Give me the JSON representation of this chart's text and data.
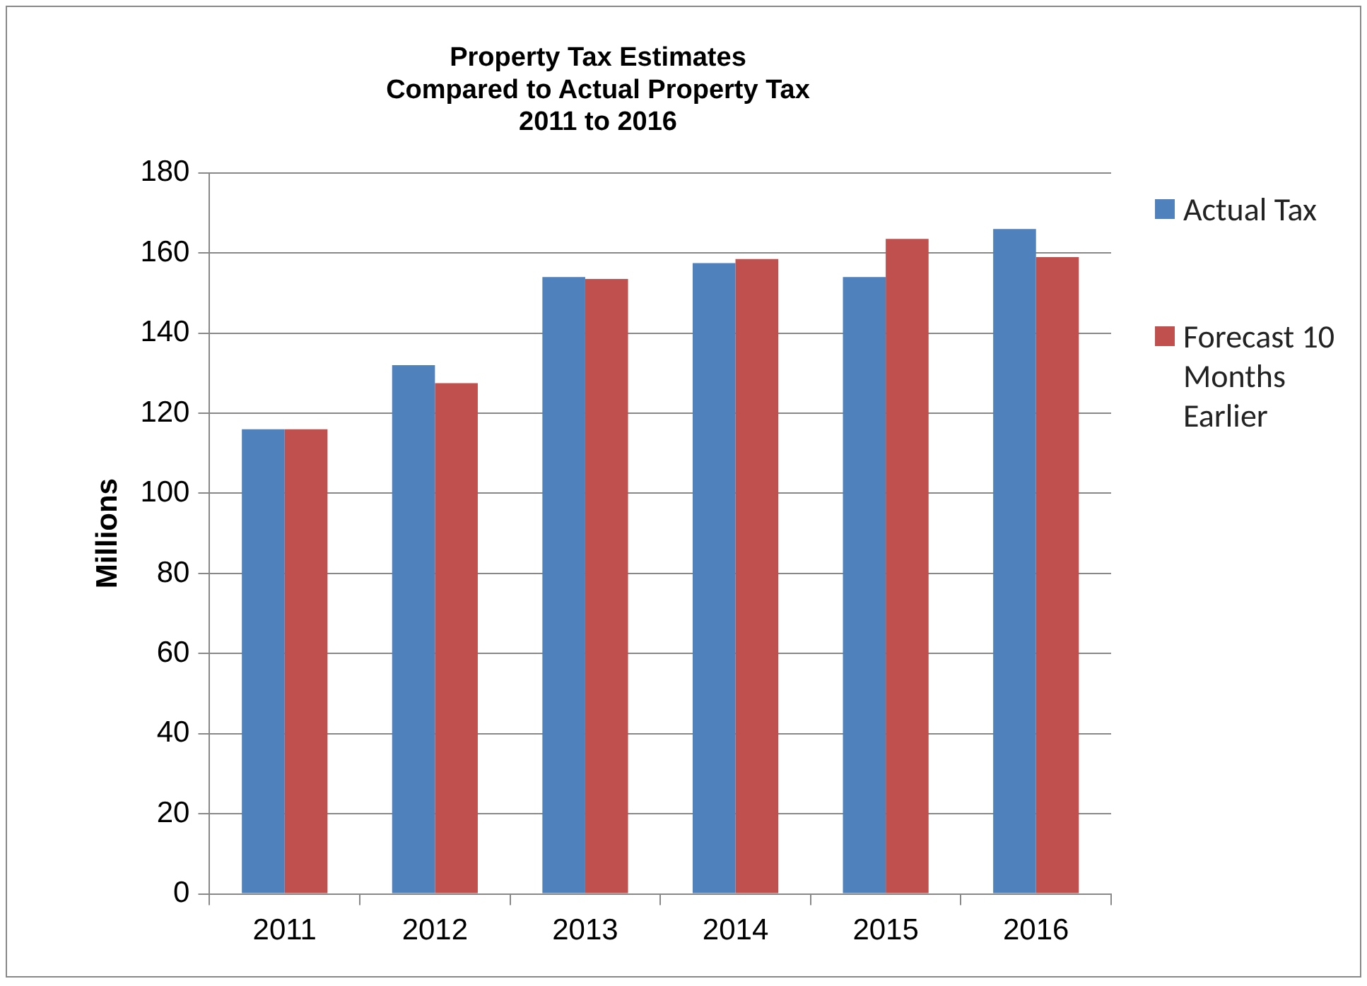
{
  "chart_data": {
    "type": "bar",
    "title": "Property Tax Estimates\nCompared to Actual Property Tax\n2011 to 2016",
    "ylabel": "Millions",
    "categories": [
      "2011",
      "2012",
      "2013",
      "2014",
      "2015",
      "2016"
    ],
    "series": [
      {
        "name": "Actual Tax",
        "color": "#4f81bd",
        "values": [
          116,
          132,
          154,
          157.5,
          154,
          166
        ]
      },
      {
        "name": "Forecast 10 Months Earlier",
        "color": "#c0504d",
        "values": [
          116,
          127.5,
          153.5,
          158.5,
          163.5,
          159
        ]
      }
    ],
    "ylim": [
      0,
      180
    ],
    "yticks": [
      0,
      20,
      40,
      60,
      80,
      100,
      120,
      140,
      160,
      180
    ],
    "grid": "y",
    "legend": "right"
  }
}
